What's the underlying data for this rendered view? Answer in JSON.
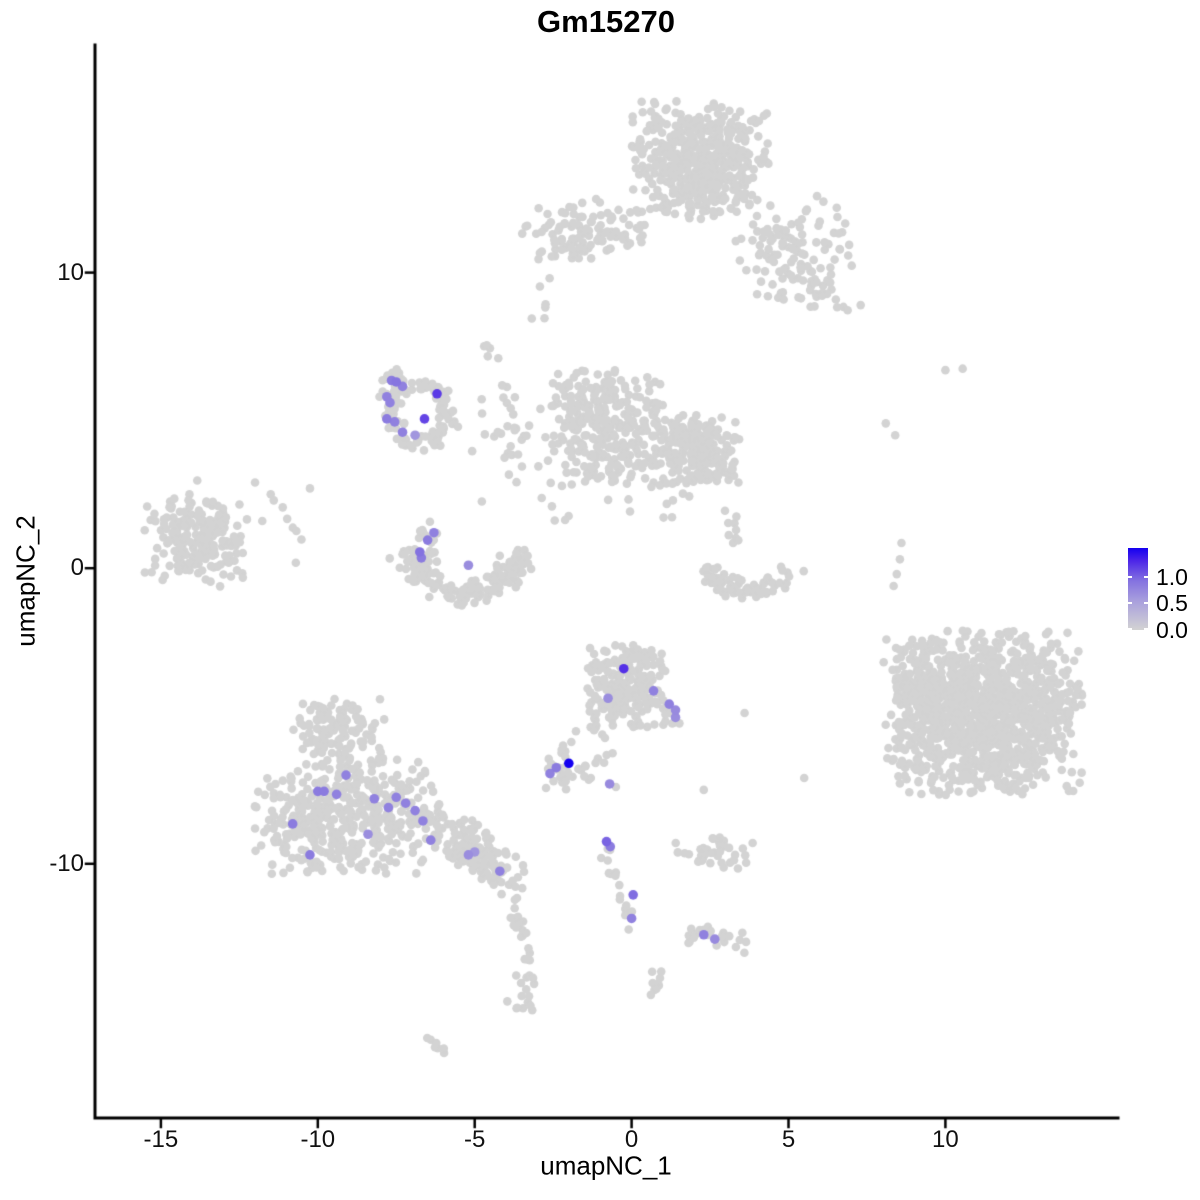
{
  "title": "Gm15270",
  "axes": {
    "x": {
      "label": "umapNC_1",
      "tick_labels": [
        "-15",
        "-10",
        "-5",
        "0",
        "5",
        "10"
      ],
      "tick_values": [
        -15,
        -10,
        -5,
        0,
        5,
        10
      ]
    },
    "y": {
      "label": "umapNC_2",
      "tick_labels": [
        "10",
        "0",
        "-10"
      ],
      "tick_values": [
        10,
        0,
        -10
      ]
    }
  },
  "legend": {
    "entries": [
      {
        "label": "1.0",
        "value": 1.0
      },
      {
        "label": "0.5",
        "value": 0.5
      },
      {
        "label": "0.0",
        "value": 0.0
      }
    ],
    "scale_max": 1.54
  },
  "colors": {
    "point_grey": "#d3d3d3",
    "axis_black": "#000000",
    "background": "#ffffff",
    "scale_stops": [
      [
        0,
        "#d3d3d3"
      ],
      [
        0.35,
        "#a9a0dd"
      ],
      [
        0.6,
        "#8472e0"
      ],
      [
        0.85,
        "#4b24e8"
      ],
      [
        1,
        "#1400f0"
      ]
    ]
  },
  "chart_data": {
    "type": "scatter",
    "title": "Gm15270",
    "xlabel": "umapNC_1",
    "ylabel": "umapNC_2",
    "xlim": [
      -17.1,
      15.5
    ],
    "ylim": [
      -18.6,
      17.7
    ],
    "x_ticks": [
      -15,
      -10,
      -5,
      0,
      5,
      10
    ],
    "y_ticks": [
      -10,
      0,
      10
    ],
    "grid": false,
    "legend_position": "right",
    "point_radius_px": 4.3,
    "expressing_point_radius_px": 4.8,
    "expression_range": [
      0,
      1.54
    ],
    "seed": 7,
    "clusters": [
      {
        "name": "top-main",
        "type": "gauss",
        "cx": 2.18,
        "cy": 13.8,
        "sx": 1.15,
        "sy": 1.05,
        "n": 500,
        "clip": 1.9
      },
      {
        "name": "top-left-arm",
        "type": "gauss",
        "cx": -1.5,
        "cy": 11.45,
        "sx": 1.0,
        "sy": 0.5,
        "rot": 10,
        "n": 120,
        "clip": 2.0
      },
      {
        "name": "top-right-spray",
        "type": "gauss",
        "cx": 5.2,
        "cy": 10.6,
        "sx": 0.95,
        "sy": 1.0,
        "n": 125,
        "clip": 2.0
      },
      {
        "name": "top-right-trail",
        "type": "chain",
        "pts": [
          [
            5.9,
            9.5
          ],
          [
            6.7,
            8.7
          ]
        ],
        "j": 0.2,
        "n": 8
      },
      {
        "name": "below-top-dots",
        "type": "gauss",
        "cx": -2.9,
        "cy": 9.0,
        "sx": 0.3,
        "sy": 0.6,
        "n": 6,
        "clip": 1.8
      },
      {
        "name": "small-blob-mid",
        "type": "gauss",
        "cx": -4.6,
        "cy": 7.4,
        "sx": 0.25,
        "sy": 0.25,
        "n": 5,
        "clip": 1.8
      },
      {
        "name": "dotted-trail-mid",
        "type": "chain",
        "pts": [
          [
            -4.2,
            6.3
          ],
          [
            -3.5,
            4.3
          ]
        ],
        "j": 0.12,
        "n": 9
      },
      {
        "name": "ring",
        "type": "arc",
        "cx": -6.74,
        "cy": 5.2,
        "rx": 0.89,
        "ry": 1.0,
        "a0": 0,
        "a1": 360,
        "w": 0.16,
        "n": 100
      },
      {
        "name": "ring-topleft",
        "type": "gauss",
        "cx": -7.5,
        "cy": 6.2,
        "sx": 0.28,
        "sy": 0.3,
        "n": 18,
        "clip": 1.8
      },
      {
        "name": "ring-left",
        "type": "gauss",
        "cx": -7.75,
        "cy": 5.3,
        "sx": 0.2,
        "sy": 0.45,
        "n": 14,
        "clip": 1.8
      },
      {
        "name": "mid-left-lobe",
        "type": "gauss",
        "cx": -0.8,
        "cy": 4.8,
        "sx": 0.95,
        "sy": 1.05,
        "n": 300,
        "clip": 1.9
      },
      {
        "name": "mid-right-lobe",
        "type": "gauss",
        "cx": 2.1,
        "cy": 4.0,
        "sx": 0.75,
        "sy": 0.65,
        "n": 220,
        "clip": 1.9
      },
      {
        "name": "bridge-sparse",
        "type": "gauss",
        "cx": -3.6,
        "cy": 3.6,
        "sx": 1.4,
        "sy": 1.1,
        "n": 40,
        "clip": 2.0
      },
      {
        "name": "mid-gap-sparse",
        "type": "gauss",
        "cx": 0.8,
        "cy": 2.4,
        "sx": 0.8,
        "sy": 0.7,
        "n": 18,
        "clip": 2.0
      },
      {
        "name": "crescent",
        "type": "arc",
        "cx": -5.25,
        "cy": 0.78,
        "rx": 1.75,
        "ry": 1.65,
        "a0": 185,
        "a1": 355,
        "w": 0.14,
        "n": 170
      },
      {
        "name": "crescent-left-rim",
        "type": "gauss",
        "cx": -6.55,
        "cy": 1.0,
        "sx": 0.28,
        "sy": 0.45,
        "n": 14,
        "clip": 1.8
      },
      {
        "name": "left-cluster",
        "type": "gauss",
        "cx": -13.9,
        "cy": 0.95,
        "sx": 0.88,
        "sy": 0.85,
        "n": 215,
        "clip": 1.9
      },
      {
        "name": "left-scatter",
        "type": "gauss",
        "cx": -12.1,
        "cy": 1.3,
        "sx": 0.9,
        "sy": 0.9,
        "n": 12,
        "clip": 2.0
      },
      {
        "name": "right-mid-crescent",
        "type": "arc",
        "cx": 3.6,
        "cy": 0.3,
        "rx": 1.35,
        "ry": 1.05,
        "a0": 195,
        "a1": 345,
        "w": 0.18,
        "n": 80
      },
      {
        "name": "right-mid-chain",
        "type": "chain",
        "pts": [
          [
            2.9,
            2.2
          ],
          [
            3.4,
            0.9
          ]
        ],
        "j": 0.15,
        "n": 9
      },
      {
        "name": "bl-apex",
        "type": "gauss",
        "cx": -9.35,
        "cy": -5.5,
        "sx": 0.75,
        "sy": 0.6,
        "n": 120,
        "clip": 2.0
      },
      {
        "name": "bl-base",
        "type": "gauss",
        "cx": -9.1,
        "cy": -8.35,
        "sx": 1.55,
        "sy": 1.05,
        "n": 460,
        "clip": 1.9
      },
      {
        "name": "bl-arm",
        "type": "gauss",
        "cx": -5.0,
        "cy": -9.55,
        "sx": 1.15,
        "sy": 0.4,
        "rot": -38,
        "n": 140,
        "clip": 1.9
      },
      {
        "name": "bl-tail",
        "type": "chain",
        "pts": [
          [
            -4.0,
            -11.0
          ],
          [
            -3.6,
            -12.0
          ],
          [
            -3.3,
            -13.2
          ],
          [
            -3.45,
            -14.3
          ]
        ],
        "j": 0.12,
        "n": 22
      },
      {
        "name": "bl-tail-end",
        "type": "gauss",
        "cx": -3.5,
        "cy": -14.7,
        "sx": 0.33,
        "sy": 0.5,
        "n": 13,
        "clip": 1.8
      },
      {
        "name": "bottom-streak",
        "type": "chain",
        "pts": [
          [
            -6.5,
            -15.9
          ],
          [
            -5.95,
            -16.35
          ]
        ],
        "j": 0.06,
        "n": 7
      },
      {
        "name": "bm-cluster",
        "type": "gauss",
        "cx": -0.2,
        "cy": -3.96,
        "sx": 0.67,
        "sy": 0.75,
        "n": 235,
        "clip": 1.9
      },
      {
        "name": "bm-tail",
        "type": "chain",
        "pts": [
          [
            0.8,
            -4.5
          ],
          [
            1.5,
            -5.35
          ]
        ],
        "j": 0.14,
        "n": 12
      },
      {
        "name": "bm-chain-left",
        "type": "chain",
        "pts": [
          [
            -1.8,
            -5.5
          ],
          [
            -2.35,
            -6.4
          ]
        ],
        "j": 0.12,
        "n": 6
      },
      {
        "name": "bm-chain-down",
        "type": "chain",
        "pts": [
          [
            -1.1,
            -5.4
          ],
          [
            -0.6,
            -6.9
          ]
        ],
        "j": 0.12,
        "n": 8
      },
      {
        "name": "bm-small",
        "type": "gauss",
        "cx": -2.12,
        "cy": -7.0,
        "sx": 0.55,
        "sy": 0.33,
        "n": 28,
        "clip": 1.9
      },
      {
        "name": "bm-chain2",
        "type": "chain",
        "pts": [
          [
            -0.85,
            -9.3
          ],
          [
            -0.7,
            -10.3
          ],
          [
            -0.2,
            -11.3
          ],
          [
            0.05,
            -12.3
          ]
        ],
        "j": 0.1,
        "n": 18
      },
      {
        "name": "bm-blob2",
        "type": "gauss",
        "cx": 0.8,
        "cy": -14.0,
        "sx": 0.3,
        "sy": 0.28,
        "n": 9,
        "clip": 1.8
      },
      {
        "name": "br-small",
        "type": "gauss",
        "cx": 2.6,
        "cy": -12.5,
        "sx": 0.6,
        "sy": 0.27,
        "n": 22,
        "clip": 1.9
      },
      {
        "name": "mr-small",
        "type": "gauss",
        "cx": 2.66,
        "cy": -9.6,
        "sx": 0.75,
        "sy": 0.33,
        "n": 40,
        "clip": 1.9
      },
      {
        "name": "right-big",
        "type": "gauss",
        "cx": 11.3,
        "cy": -4.9,
        "sx": 1.7,
        "sy": 1.55,
        "n": 1150,
        "clip": 1.8
      },
      {
        "name": "right-big-ext",
        "type": "gauss",
        "cx": 9.2,
        "cy": -4.6,
        "sx": 0.65,
        "sy": 1.35,
        "n": 100,
        "clip": 1.8
      }
    ],
    "singles": [
      [
        -10.25,
        2.7
      ],
      [
        -12.0,
        2.9
      ],
      [
        -11.5,
        2.5
      ],
      [
        8.1,
        4.9
      ],
      [
        8.4,
        4.5
      ],
      [
        10.0,
        6.7
      ],
      [
        10.55,
        6.75
      ],
      [
        8.6,
        0.85
      ],
      [
        8.55,
        0.3
      ],
      [
        8.45,
        -0.2
      ],
      [
        8.35,
        -0.6
      ],
      [
        7.3,
        8.9
      ],
      [
        5.5,
        -7.1
      ],
      [
        3.6,
        -4.9
      ],
      [
        1.9,
        -12.2
      ],
      [
        2.3,
        -7.5
      ],
      [
        -0.5,
        -7.4
      ]
    ],
    "expressing_points": [
      {
        "x": -7.65,
        "y": 6.35,
        "v": 0.85
      },
      {
        "x": -7.5,
        "y": 6.3,
        "v": 0.9
      },
      {
        "x": -7.3,
        "y": 6.15,
        "v": 0.8
      },
      {
        "x": -7.8,
        "y": 5.8,
        "v": 0.8
      },
      {
        "x": -7.7,
        "y": 5.6,
        "v": 0.8
      },
      {
        "x": -7.8,
        "y": 5.05,
        "v": 0.85
      },
      {
        "x": -7.55,
        "y": 4.95,
        "v": 0.8
      },
      {
        "x": -7.3,
        "y": 4.6,
        "v": 0.8
      },
      {
        "x": -6.9,
        "y": 4.5,
        "v": 0.62
      },
      {
        "x": -6.6,
        "y": 5.05,
        "v": 1.15
      },
      {
        "x": -6.2,
        "y": 5.9,
        "v": 1.2
      },
      {
        "x": -6.3,
        "y": 1.2,
        "v": 0.8
      },
      {
        "x": -6.5,
        "y": 0.95,
        "v": 0.85
      },
      {
        "x": -6.75,
        "y": 0.55,
        "v": 0.92
      },
      {
        "x": -6.7,
        "y": 0.35,
        "v": 0.85
      },
      {
        "x": -5.2,
        "y": 0.1,
        "v": 0.7
      },
      {
        "x": -0.25,
        "y": -3.4,
        "v": 1.25
      },
      {
        "x": 0.7,
        "y": -4.15,
        "v": 0.8
      },
      {
        "x": -0.75,
        "y": -4.4,
        "v": 0.7
      },
      {
        "x": 1.2,
        "y": -4.6,
        "v": 0.8
      },
      {
        "x": 1.4,
        "y": -4.8,
        "v": 0.72
      },
      {
        "x": 1.4,
        "y": -5.05,
        "v": 0.7
      },
      {
        "x": -2.0,
        "y": -6.6,
        "v": 1.54
      },
      {
        "x": -2.4,
        "y": -6.75,
        "v": 0.85
      },
      {
        "x": -2.6,
        "y": -6.95,
        "v": 0.8
      },
      {
        "x": -0.7,
        "y": -7.3,
        "v": 0.72
      },
      {
        "x": -0.8,
        "y": -9.25,
        "v": 1.0
      },
      {
        "x": -0.68,
        "y": -9.42,
        "v": 0.85
      },
      {
        "x": 0.05,
        "y": -11.05,
        "v": 0.95
      },
      {
        "x": 0.0,
        "y": -11.85,
        "v": 0.8
      },
      {
        "x": 2.3,
        "y": -12.4,
        "v": 0.8
      },
      {
        "x": 2.65,
        "y": -12.55,
        "v": 0.72
      },
      {
        "x": -9.1,
        "y": -7.0,
        "v": 0.8
      },
      {
        "x": -10.0,
        "y": -7.55,
        "v": 0.85
      },
      {
        "x": -9.8,
        "y": -7.55,
        "v": 0.85
      },
      {
        "x": -9.4,
        "y": -7.65,
        "v": 0.8
      },
      {
        "x": -8.2,
        "y": -7.8,
        "v": 0.8
      },
      {
        "x": -7.5,
        "y": -7.75,
        "v": 0.8
      },
      {
        "x": -7.2,
        "y": -7.95,
        "v": 0.8
      },
      {
        "x": -7.75,
        "y": -8.1,
        "v": 0.8
      },
      {
        "x": -6.9,
        "y": -8.2,
        "v": 0.8
      },
      {
        "x": -6.65,
        "y": -8.55,
        "v": 0.8
      },
      {
        "x": -10.8,
        "y": -8.65,
        "v": 0.85
      },
      {
        "x": -8.4,
        "y": -9.0,
        "v": 0.7
      },
      {
        "x": -6.4,
        "y": -9.2,
        "v": 0.8
      },
      {
        "x": -10.25,
        "y": -9.7,
        "v": 0.85
      },
      {
        "x": -5.2,
        "y": -9.7,
        "v": 0.7
      },
      {
        "x": -5.0,
        "y": -9.6,
        "v": 0.62
      },
      {
        "x": -4.2,
        "y": -10.25,
        "v": 0.8
      }
    ]
  }
}
